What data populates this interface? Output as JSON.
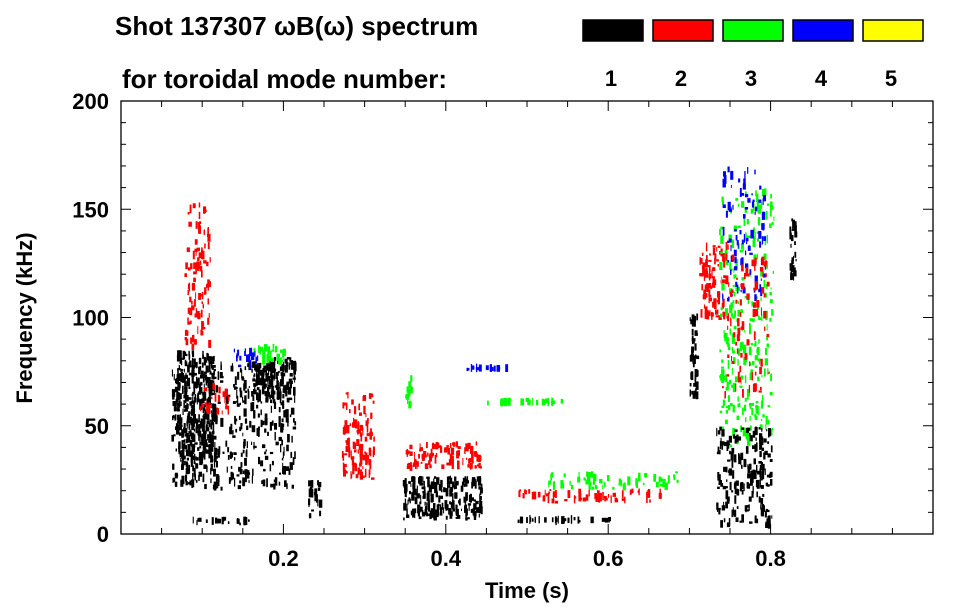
{
  "chart_data": {
    "type": "heatmap",
    "title_line1": "Shot 137307 ωB(ω) spectrum",
    "title_line2": "for toroidal mode number:",
    "xlabel": "Time (s)",
    "ylabel": "Frequency (kHz)",
    "xlim": [
      0,
      1.0
    ],
    "ylim": [
      0,
      200
    ],
    "xticks": [
      0.2,
      0.4,
      0.6,
      0.8
    ],
    "xtick_labels": [
      "0.2",
      "0.4",
      "0.6",
      "0.8"
    ],
    "yticks": [
      0,
      50,
      100,
      150,
      200
    ],
    "ytick_labels": [
      "0",
      "50",
      "100",
      "150",
      "200"
    ],
    "legend": [
      {
        "mode": "1",
        "color": "#000000"
      },
      {
        "mode": "2",
        "color": "#ff0000"
      },
      {
        "mode": "3",
        "color": "#00ff00"
      },
      {
        "mode": "4",
        "color": "#0000ff"
      },
      {
        "mode": "5",
        "color": "#ffff00"
      }
    ],
    "regions": [
      {
        "mode": 1,
        "t": [
          0.068,
          0.118
        ],
        "f": [
          30,
          85
        ],
        "density": 0.9
      },
      {
        "mode": 1,
        "t": [
          0.062,
          0.217
        ],
        "f": [
          20,
          80
        ],
        "density": 0.35
      },
      {
        "mode": 1,
        "t": [
          0.16,
          0.217
        ],
        "f": [
          60,
          82
        ],
        "density": 0.8
      },
      {
        "mode": 1,
        "t": [
          0.087,
          0.16
        ],
        "f": [
          4,
          8
        ],
        "density": 0.6
      },
      {
        "mode": 2,
        "t": [
          0.078,
          0.111
        ],
        "f": [
          85,
          154
        ],
        "density": 0.35
      },
      {
        "mode": 2,
        "t": [
          0.095,
          0.14
        ],
        "f": [
          55,
          70
        ],
        "density": 0.3
      },
      {
        "mode": 3,
        "t": [
          0.16,
          0.204
        ],
        "f": [
          78,
          88
        ],
        "density": 0.5
      },
      {
        "mode": 4,
        "t": [
          0.136,
          0.17
        ],
        "f": [
          76,
          86
        ],
        "density": 0.4
      },
      {
        "mode": 1,
        "t": [
          0.23,
          0.248
        ],
        "f": [
          6,
          25
        ],
        "density": 0.5
      },
      {
        "mode": 2,
        "t": [
          0.272,
          0.313
        ],
        "f": [
          25,
          66
        ],
        "density": 0.55
      },
      {
        "mode": 1,
        "t": [
          0.347,
          0.446
        ],
        "f": [
          6,
          27
        ],
        "density": 0.85
      },
      {
        "mode": 2,
        "t": [
          0.35,
          0.446
        ],
        "f": [
          29,
          43
        ],
        "density": 0.55
      },
      {
        "mode": 3,
        "t": [
          0.35,
          0.36
        ],
        "f": [
          57,
          75
        ],
        "density": 0.6
      },
      {
        "mode": 4,
        "t": [
          0.42,
          0.495
        ],
        "f": [
          75,
          78
        ],
        "density": 0.55
      },
      {
        "mode": 3,
        "t": [
          0.45,
          0.545
        ],
        "f": [
          59,
          63
        ],
        "density": 0.55
      },
      {
        "mode": 1,
        "t": [
          0.486,
          0.613
        ],
        "f": [
          5,
          8
        ],
        "density": 0.6
      },
      {
        "mode": 2,
        "t": [
          0.485,
          0.687
        ],
        "f": [
          14,
          21
        ],
        "density": 0.35
      },
      {
        "mode": 3,
        "t": [
          0.526,
          0.687
        ],
        "f": [
          20,
          29
        ],
        "density": 0.3
      },
      {
        "mode": 1,
        "t": [
          0.7,
          0.712
        ],
        "f": [
          61,
          103
        ],
        "density": 0.7
      },
      {
        "mode": 2,
        "t": [
          0.712,
          0.749
        ],
        "f": [
          98,
          135
        ],
        "density": 0.5
      },
      {
        "mode": 3,
        "t": [
          0.736,
          0.805
        ],
        "f": [
          40,
          160
        ],
        "density": 0.25
      },
      {
        "mode": 4,
        "t": [
          0.74,
          0.795
        ],
        "f": [
          107,
          170
        ],
        "density": 0.2
      },
      {
        "mode": 2,
        "t": [
          0.74,
          0.8
        ],
        "f": [
          60,
          130
        ],
        "density": 0.15
      },
      {
        "mode": 1,
        "t": [
          0.733,
          0.803
        ],
        "f": [
          2,
          50
        ],
        "density": 0.45
      },
      {
        "mode": 1,
        "t": [
          0.823,
          0.833
        ],
        "f": [
          117,
          149
        ],
        "density": 0.7
      }
    ]
  }
}
